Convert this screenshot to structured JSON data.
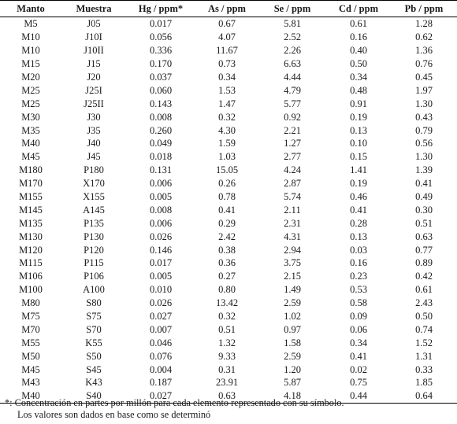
{
  "table": {
    "columns": [
      "Manto",
      "Muestra",
      "Hg / ppm*",
      "As / ppm",
      "Se / ppm",
      "Cd / ppm",
      "Pb / ppm"
    ],
    "rows": [
      [
        "M5",
        "J05",
        "0.017",
        "0.67",
        "5.81",
        "0.61",
        "1.28"
      ],
      [
        "M10",
        "J10I",
        "0.056",
        "4.07",
        "2.52",
        "0.16",
        "0.62"
      ],
      [
        "M10",
        "J10II",
        "0.336",
        "11.67",
        "2.26",
        "0.40",
        "1.36"
      ],
      [
        "M15",
        "J15",
        "0.170",
        "0.73",
        "6.63",
        "0.50",
        "0.76"
      ],
      [
        "M20",
        "J20",
        "0.037",
        "0.34",
        "4.44",
        "0.34",
        "0.45"
      ],
      [
        "M25",
        "J25I",
        "0.060",
        "1.53",
        "4.79",
        "0.48",
        "1.97"
      ],
      [
        "M25",
        "J25II",
        "0.143",
        "1.47",
        "5.77",
        "0.91",
        "1.30"
      ],
      [
        "M30",
        "J30",
        "0.008",
        "0.32",
        "0.92",
        "0.19",
        "0.43"
      ],
      [
        "M35",
        "J35",
        "0.260",
        "4.30",
        "2.21",
        "0.13",
        "0.79"
      ],
      [
        "M40",
        "J40",
        "0.049",
        "1.59",
        "1.27",
        "0.10",
        "0.56"
      ],
      [
        "M45",
        "J45",
        "0.018",
        "1.03",
        "2.77",
        "0.15",
        "1.30"
      ],
      [
        "M180",
        "P180",
        "0.131",
        "15.05",
        "4.24",
        "1.41",
        "1.39"
      ],
      [
        "M170",
        "X170",
        "0.006",
        "0.26",
        "2.87",
        "0.19",
        "0.41"
      ],
      [
        "M155",
        "X155",
        "0.005",
        "0.78",
        "5.74",
        "0.46",
        "0.49"
      ],
      [
        "M145",
        "A145",
        "0.008",
        "0.41",
        "2.11",
        "0.41",
        "0.30"
      ],
      [
        "M135",
        "P135",
        "0.006",
        "0.29",
        "2.31",
        "0.28",
        "0.51"
      ],
      [
        "M130",
        "P130",
        "0.026",
        "2.42",
        "4.31",
        "0.13",
        "0.63"
      ],
      [
        "M120",
        "P120",
        "0.146",
        "0.38",
        "2.94",
        "0.03",
        "0.77"
      ],
      [
        "M115",
        "P115",
        "0.017",
        "0.36",
        "3.75",
        "0.16",
        "0.89"
      ],
      [
        "M106",
        "P106",
        "0.005",
        "0.27",
        "2.15",
        "0.23",
        "0.42"
      ],
      [
        "M100",
        "A100",
        "0.010",
        "0.80",
        "1.49",
        "0.53",
        "0.61"
      ],
      [
        "M80",
        "S80",
        "0.026",
        "13.42",
        "2.59",
        "0.58",
        "2.43"
      ],
      [
        "M75",
        "S75",
        "0.027",
        "0.32",
        "1.02",
        "0.09",
        "0.50"
      ],
      [
        "M70",
        "S70",
        "0.007",
        "0.51",
        "0.97",
        "0.06",
        "0.74"
      ],
      [
        "M55",
        "K55",
        "0.046",
        "1.32",
        "1.58",
        "0.34",
        "1.52"
      ],
      [
        "M50",
        "S50",
        "0.076",
        "9.33",
        "2.59",
        "0.41",
        "1.31"
      ],
      [
        "M45",
        "S45",
        "0.004",
        "0.31",
        "1.20",
        "0.02",
        "0.33"
      ],
      [
        "M43",
        "K43",
        "0.187",
        "23.91",
        "5.87",
        "0.75",
        "1.85"
      ],
      [
        "M40",
        "S40",
        "0.027",
        "0.63",
        "4.18",
        "0.44",
        "0.64"
      ]
    ]
  },
  "footnote": {
    "line1": "*: Concentración en partes por millón para cada elemento representado con su símbolo.",
    "line2": "Los valores son dados en base como se determinó"
  }
}
